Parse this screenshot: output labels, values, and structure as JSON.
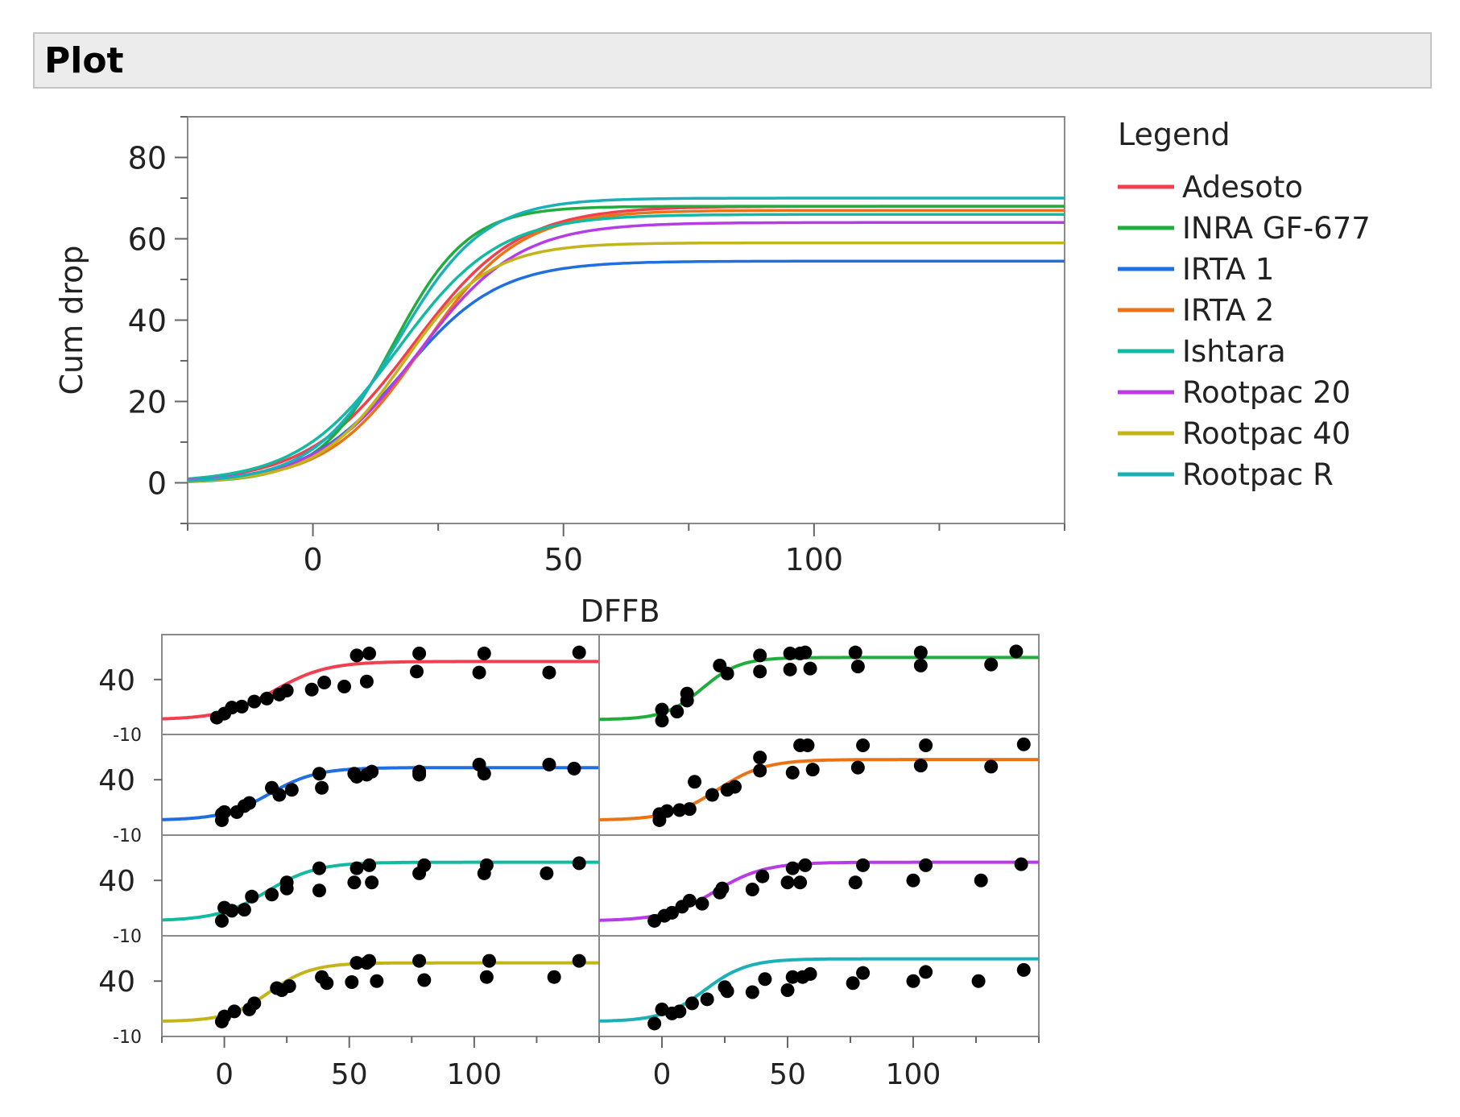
{
  "header": {
    "title": "Plot"
  },
  "legend": {
    "title": "Legend",
    "items": [
      {
        "name": "Adesoto",
        "color": "#f0404f"
      },
      {
        "name": "INRA GF-677",
        "color": "#1fae3b"
      },
      {
        "name": "IRTA 1",
        "color": "#1f6fe0"
      },
      {
        "name": "IRTA 2",
        "color": "#ea7318"
      },
      {
        "name": "Ishtara",
        "color": "#13b9a0"
      },
      {
        "name": "Rootpac 20",
        "color": "#b83ce6"
      },
      {
        "name": "Rootpac 40",
        "color": "#c3b41a"
      },
      {
        "name": "Rootpac R",
        "color": "#19b0b8"
      }
    ]
  },
  "chart_data": [
    {
      "type": "line",
      "title": "",
      "xlabel": "DFFB",
      "ylabel": "Cum drop",
      "xlim": [
        -25,
        150
      ],
      "ylim": [
        -10,
        90
      ],
      "x_ticks": [
        0,
        50,
        100
      ],
      "y_ticks": [
        0,
        20,
        40,
        60,
        80
      ],
      "series": [
        {
          "name": "Adesoto",
          "color": "#f0404f",
          "asymptote": 68,
          "midpoint": 20,
          "scale": 10.5
        },
        {
          "name": "INRA GF-677",
          "color": "#1fae3b",
          "asymptote": 68,
          "midpoint": 16,
          "scale": 7.5
        },
        {
          "name": "IRTA 1",
          "color": "#1f6fe0",
          "asymptote": 54.5,
          "midpoint": 18,
          "scale": 9.5
        },
        {
          "name": "IRTA 2",
          "color": "#ea7318",
          "asymptote": 67,
          "midpoint": 22,
          "scale": 9.5
        },
        {
          "name": "Ishtara",
          "color": "#13b9a0",
          "asymptote": 66,
          "midpoint": 17,
          "scale": 10
        },
        {
          "name": "Rootpac 20",
          "color": "#b83ce6",
          "asymptote": 64,
          "midpoint": 21,
          "scale": 10
        },
        {
          "name": "Rootpac 40",
          "color": "#c3b41a",
          "asymptote": 59,
          "midpoint": 18,
          "scale": 8.5
        },
        {
          "name": "Rootpac R",
          "color": "#19b0b8",
          "asymptote": 70,
          "midpoint": 17,
          "scale": 8.5
        }
      ]
    },
    {
      "type": "scatter",
      "title": "",
      "xlabel": "",
      "ylabel": "",
      "xlim": [
        -25,
        150
      ],
      "ylim": [
        -10,
        80
      ],
      "x_ticks": [
        0,
        50,
        100
      ],
      "y_ticks": [
        40
      ],
      "y_bottom_label": "-10",
      "panels": [
        {
          "name": "Adesoto",
          "color": "#f0404f",
          "asymptote": 58,
          "midpoint": 20,
          "scale": 10.5,
          "points": [
            [
              -3,
              2
            ],
            [
              0,
              6
            ],
            [
              3,
              12
            ],
            [
              7,
              13
            ],
            [
              12,
              18
            ],
            [
              17,
              21
            ],
            [
              22,
              25
            ],
            [
              25,
              29
            ],
            [
              35,
              30
            ],
            [
              40,
              37
            ],
            [
              48,
              33
            ],
            [
              53,
              64
            ],
            [
              57,
              38
            ],
            [
              58,
              66
            ],
            [
              77,
              48
            ],
            [
              78,
              66
            ],
            [
              102,
              47
            ],
            [
              104,
              66
            ],
            [
              130,
              47
            ],
            [
              142,
              67
            ]
          ]
        },
        {
          "name": "INRA GF-677",
          "color": "#1fae3b",
          "asymptote": 62,
          "midpoint": 16,
          "scale": 7.5,
          "points": [
            [
              0,
              10
            ],
            [
              0,
              -1
            ],
            [
              6,
              8
            ],
            [
              10,
              26
            ],
            [
              10,
              19
            ],
            [
              23,
              54
            ],
            [
              26,
              46
            ],
            [
              39,
              64
            ],
            [
              39,
              48
            ],
            [
              51,
              66
            ],
            [
              51,
              50
            ],
            [
              55,
              66
            ],
            [
              57,
              67
            ],
            [
              59,
              51
            ],
            [
              77,
              67
            ],
            [
              78,
              53
            ],
            [
              103,
              67
            ],
            [
              103,
              54
            ],
            [
              131,
              55
            ],
            [
              141,
              68
            ]
          ]
        },
        {
          "name": "IRTA 1",
          "color": "#1f6fe0",
          "asymptote": 52,
          "midpoint": 18,
          "scale": 9.5,
          "points": [
            [
              -1,
              6
            ],
            [
              -1,
              0
            ],
            [
              0,
              8
            ],
            [
              5,
              8
            ],
            [
              8,
              14
            ],
            [
              10,
              17
            ],
            [
              19,
              32
            ],
            [
              22,
              25
            ],
            [
              27,
              30
            ],
            [
              38,
              46
            ],
            [
              39,
              32
            ],
            [
              52,
              46
            ],
            [
              53,
              43
            ],
            [
              57,
              45
            ],
            [
              59,
              48
            ],
            [
              78,
              48
            ],
            [
              78,
              45
            ],
            [
              102,
              55
            ],
            [
              104,
              46
            ],
            [
              130,
              55
            ],
            [
              140,
              51
            ]
          ]
        },
        {
          "name": "IRTA 2",
          "color": "#ea7318",
          "asymptote": 60,
          "midpoint": 22,
          "scale": 9.5,
          "points": [
            [
              -1,
              6
            ],
            [
              -1,
              0
            ],
            [
              2,
              9
            ],
            [
              7,
              10
            ],
            [
              11,
              11
            ],
            [
              13,
              38
            ],
            [
              20,
              25
            ],
            [
              26,
              30
            ],
            [
              29,
              33
            ],
            [
              39,
              49
            ],
            [
              39,
              62
            ],
            [
              52,
              47
            ],
            [
              55,
              74
            ],
            [
              58,
              74
            ],
            [
              60,
              50
            ],
            [
              78,
              52
            ],
            [
              80,
              74
            ],
            [
              103,
              54
            ],
            [
              105,
              74
            ],
            [
              131,
              53
            ],
            [
              144,
              75
            ]
          ]
        },
        {
          "name": "Ishtara",
          "color": "#13b9a0",
          "asymptote": 58,
          "midpoint": 17,
          "scale": 10,
          "points": [
            [
              -1,
              0
            ],
            [
              0,
              13
            ],
            [
              3,
              10
            ],
            [
              8,
              11
            ],
            [
              11,
              24
            ],
            [
              19,
              26
            ],
            [
              25,
              32
            ],
            [
              25,
              38
            ],
            [
              38,
              30
            ],
            [
              38,
              52
            ],
            [
              52,
              38
            ],
            [
              53,
              52
            ],
            [
              58,
              55
            ],
            [
              59,
              38
            ],
            [
              78,
              47
            ],
            [
              80,
              55
            ],
            [
              104,
              47
            ],
            [
              105,
              55
            ],
            [
              129,
              47
            ],
            [
              142,
              57
            ]
          ]
        },
        {
          "name": "Rootpac 20",
          "color": "#b83ce6",
          "asymptote": 58,
          "midpoint": 21,
          "scale": 10,
          "points": [
            [
              -3,
              0
            ],
            [
              1,
              5
            ],
            [
              4,
              8
            ],
            [
              8,
              14
            ],
            [
              11,
              20
            ],
            [
              16,
              17
            ],
            [
              23,
              28
            ],
            [
              24,
              32
            ],
            [
              36,
              31
            ],
            [
              40,
              44
            ],
            [
              50,
              38
            ],
            [
              52,
              52
            ],
            [
              55,
              38
            ],
            [
              57,
              55
            ],
            [
              77,
              38
            ],
            [
              80,
              55
            ],
            [
              100,
              40
            ],
            [
              105,
              55
            ],
            [
              127,
              40
            ],
            [
              143,
              56
            ]
          ]
        },
        {
          "name": "Rootpac 40",
          "color": "#c3b41a",
          "asymptote": 58,
          "midpoint": 18,
          "scale": 8.5,
          "points": [
            [
              -1,
              0
            ],
            [
              0,
              5
            ],
            [
              4,
              10
            ],
            [
              10,
              12
            ],
            [
              12,
              18
            ],
            [
              21,
              33
            ],
            [
              23,
              31
            ],
            [
              26,
              35
            ],
            [
              39,
              44
            ],
            [
              41,
              38
            ],
            [
              51,
              39
            ],
            [
              53,
              58
            ],
            [
              57,
              58
            ],
            [
              58,
              60
            ],
            [
              61,
              40
            ],
            [
              78,
              60
            ],
            [
              80,
              41
            ],
            [
              105,
              44
            ],
            [
              106,
              60
            ],
            [
              132,
              44
            ],
            [
              142,
              60
            ]
          ]
        },
        {
          "name": "Rootpac R",
          "color": "#19b0b8",
          "asymptote": 62,
          "midpoint": 17,
          "scale": 8.5,
          "points": [
            [
              -3,
              -2
            ],
            [
              0,
              12
            ],
            [
              4,
              8
            ],
            [
              7,
              10
            ],
            [
              12,
              18
            ],
            [
              18,
              22
            ],
            [
              25,
              34
            ],
            [
              26,
              30
            ],
            [
              36,
              29
            ],
            [
              41,
              42
            ],
            [
              50,
              31
            ],
            [
              52,
              44
            ],
            [
              56,
              44
            ],
            [
              59,
              47
            ],
            [
              76,
              38
            ],
            [
              80,
              48
            ],
            [
              100,
              40
            ],
            [
              105,
              49
            ],
            [
              126,
              40
            ],
            [
              144,
              51
            ]
          ]
        }
      ]
    }
  ]
}
